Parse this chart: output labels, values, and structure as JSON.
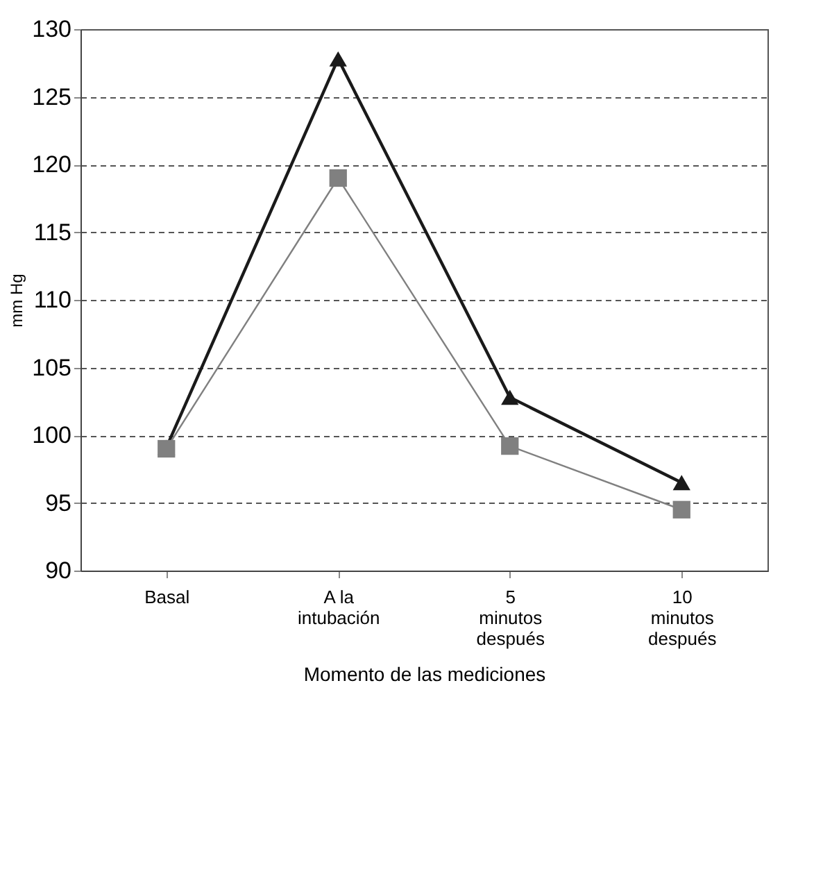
{
  "chart_data": {
    "type": "line",
    "xlabel": "Momento de las mediciones",
    "ylabel": "mm Hg",
    "categories": [
      "Basal",
      "A la intubación",
      "5 minutos después",
      "10 minutos después"
    ],
    "series": [
      {
        "color": "#1a1a1a",
        "marker": "triangle",
        "values": [
          99.1,
          127.8,
          102.8,
          96.5
        ]
      },
      {
        "color": "#808080",
        "marker": "square",
        "values": [
          99.0,
          119.0,
          99.2,
          94.5
        ]
      }
    ],
    "ylim": [
      90,
      130
    ],
    "yticks": [
      90,
      95,
      100,
      105,
      110,
      115,
      120,
      125,
      130
    ],
    "grid": "y",
    "line_style": "solid"
  }
}
